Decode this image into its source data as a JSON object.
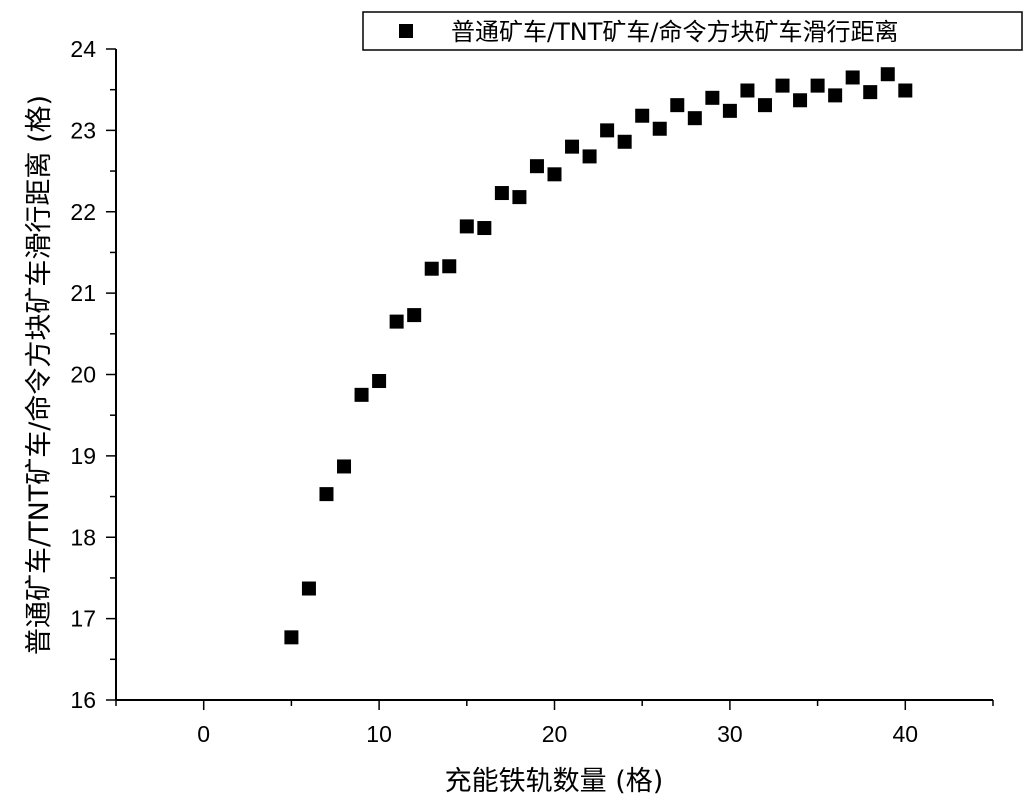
{
  "chart_data": {
    "type": "scatter",
    "xlabel": "充能铁轨数量 (格)",
    "ylabel": "普通矿车/TNT矿车/命令方块矿车滑行距离 (格)",
    "xlim": [
      -5,
      45
    ],
    "ylim": [
      16,
      24
    ],
    "xticks": [
      0,
      10,
      20,
      30,
      40
    ],
    "yticks": [
      16,
      17,
      18,
      19,
      20,
      21,
      22,
      23,
      24
    ],
    "grid": false,
    "legend_position": "top-right",
    "marker": "square",
    "marker_color": "#000000",
    "series": [
      {
        "name": "普通矿车/TNT矿车/命令方块矿车滑行距离",
        "x": [
          5,
          6,
          7,
          8,
          9,
          10,
          11,
          12,
          13,
          14,
          15,
          16,
          17,
          18,
          19,
          20,
          21,
          22,
          23,
          24,
          25,
          26,
          27,
          28,
          29,
          30,
          31,
          32,
          33,
          34,
          35,
          36,
          37,
          38,
          39,
          40
        ],
        "y": [
          16.77,
          17.37,
          18.53,
          18.87,
          19.75,
          19.92,
          20.65,
          20.73,
          21.3,
          21.33,
          21.82,
          21.8,
          22.23,
          22.18,
          22.56,
          22.46,
          22.8,
          22.68,
          23.0,
          22.86,
          23.18,
          23.02,
          23.31,
          23.15,
          23.4,
          23.24,
          23.49,
          23.31,
          23.55,
          23.37,
          23.55,
          23.43,
          23.65,
          23.47,
          23.69,
          23.49
        ]
      }
    ]
  }
}
